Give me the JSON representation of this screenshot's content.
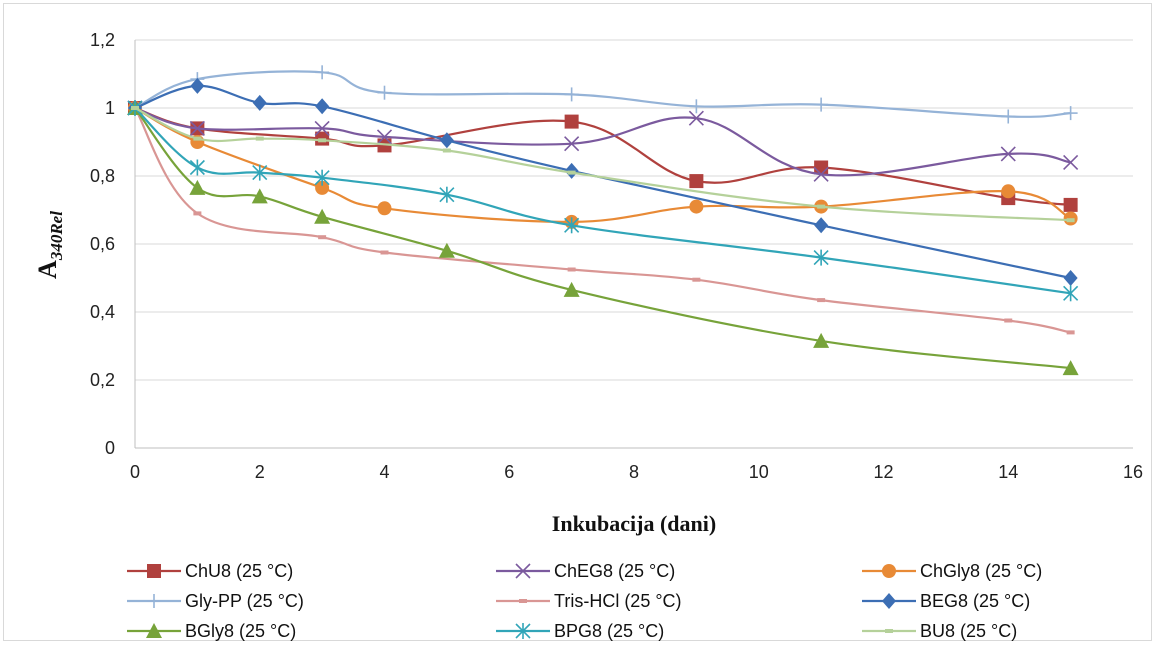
{
  "chart_data": {
    "type": "line",
    "title": "",
    "xlabel": "Inkubacija (dani)",
    "ylabel": {
      "main": "A",
      "sub": "340Rel"
    },
    "xlim": [
      0,
      16
    ],
    "ylim": [
      0,
      1.2
    ],
    "xticks": [
      "0",
      "2",
      "4",
      "6",
      "8",
      "10",
      "12",
      "14",
      "16"
    ],
    "yticks": [
      "0",
      "0,2",
      "0,4",
      "0,6",
      "0,8",
      "1",
      "1,2"
    ],
    "grid": "horizontal",
    "legend_position": "bottom",
    "series": [
      {
        "name": "ChU8 (25 °C)",
        "color": "#b0413e",
        "marker": "square",
        "x": [
          0,
          1,
          3,
          4,
          7,
          9,
          11,
          14,
          15
        ],
        "y": [
          1.0,
          0.94,
          0.91,
          0.89,
          0.96,
          0.785,
          0.825,
          0.735,
          0.715
        ]
      },
      {
        "name": "ChEG8  (25 °C)",
        "color": "#7b5a9e",
        "marker": "x",
        "x": [
          0,
          1,
          3,
          4,
          7,
          9,
          11,
          14,
          15
        ],
        "y": [
          1.0,
          0.94,
          0.94,
          0.915,
          0.895,
          0.97,
          0.805,
          0.865,
          0.84
        ]
      },
      {
        "name": "ChGly8  (25 °C)",
        "color": "#e88a36",
        "marker": "circle",
        "x": [
          0,
          1,
          3,
          4,
          7,
          9,
          11,
          14,
          15
        ],
        "y": [
          1.0,
          0.9,
          0.765,
          0.705,
          0.665,
          0.71,
          0.71,
          0.755,
          0.675
        ]
      },
      {
        "name": "Gly-PP  (25 °C)",
        "color": "#95b3d7",
        "marker": "plus",
        "x": [
          0,
          1,
          3,
          4,
          7,
          9,
          11,
          14,
          15
        ],
        "y": [
          1.0,
          1.085,
          1.105,
          1.045,
          1.04,
          1.005,
          1.01,
          0.975,
          0.985
        ]
      },
      {
        "name": "Tris-HCl  (25 °C)",
        "color": "#d99694",
        "marker": "dash",
        "x": [
          0,
          1,
          3,
          4,
          7,
          9,
          11,
          14,
          15
        ],
        "y": [
          1.0,
          0.69,
          0.62,
          0.575,
          0.525,
          0.495,
          0.435,
          0.375,
          0.34
        ]
      },
      {
        "name": "BEG8  (25 °C)",
        "color": "#3c6eb4",
        "marker": "diamond",
        "x": [
          0,
          1,
          2,
          3,
          5,
          7,
          11,
          15
        ],
        "y": [
          1.0,
          1.065,
          1.015,
          1.005,
          0.905,
          0.815,
          0.655,
          0.5
        ]
      },
      {
        "name": "BGly8  (25 °C)",
        "color": "#77a33a",
        "marker": "triangle",
        "x": [
          0,
          1,
          2,
          3,
          5,
          7,
          11,
          15
        ],
        "y": [
          1.0,
          0.765,
          0.74,
          0.68,
          0.58,
          0.465,
          0.315,
          0.235
        ]
      },
      {
        "name": "BPG8  (25 °C)",
        "color": "#31a5b8",
        "marker": "star",
        "x": [
          0,
          1,
          2,
          3,
          5,
          7,
          11,
          15
        ],
        "y": [
          1.0,
          0.825,
          0.81,
          0.795,
          0.745,
          0.655,
          0.56,
          0.455
        ]
      },
      {
        "name": "BU8  (25 °C)",
        "color": "#b5d19a",
        "marker": "dash",
        "x": [
          0,
          1,
          2,
          3,
          5,
          7,
          11,
          15
        ],
        "y": [
          1.0,
          0.91,
          0.91,
          0.905,
          0.875,
          0.81,
          0.71,
          0.67
        ]
      }
    ]
  }
}
